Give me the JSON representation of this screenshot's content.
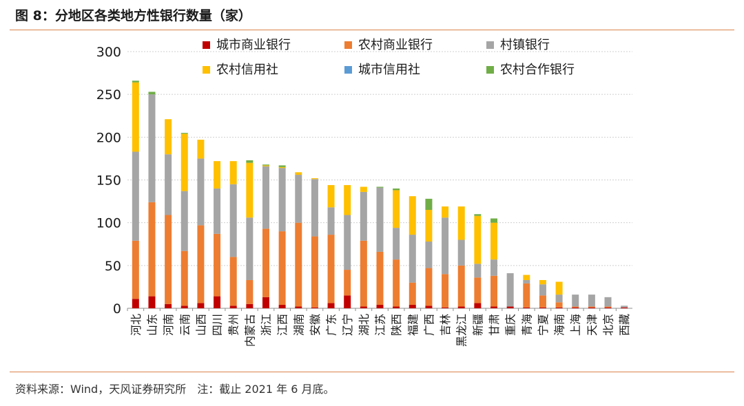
{
  "header": {
    "title": "图 8：分地区各类地方性银行数量（家）"
  },
  "footer": {
    "note": "资料来源：Wind，天风证券研究所　注：截止 2021 年 6 月底。"
  },
  "colors": {
    "city_commercial": "#c00000",
    "rural_commercial": "#ed7d31",
    "village_town": "#a5a5a5",
    "rural_credit": "#ffc000",
    "city_credit": "#5b9bd5",
    "rural_cooperative": "#70ad47"
  },
  "chart_data": {
    "type": "bar",
    "stacked": true,
    "ylim": [
      0,
      300
    ],
    "yticks": [
      0,
      50,
      100,
      150,
      200,
      250,
      300
    ],
    "grid": true,
    "legend_position": "top",
    "categories": [
      "河北",
      "山东",
      "河南",
      "云南",
      "山西",
      "四川",
      "贵州",
      "内蒙古",
      "浙江",
      "江西",
      "湖南",
      "安徽",
      "广东",
      "辽宁",
      "湖北",
      "江苏",
      "陕西",
      "福建",
      "广西",
      "吉林",
      "黑龙江",
      "新疆",
      "甘肃",
      "重庆",
      "青海",
      "宁夏",
      "海南",
      "上海",
      "天津",
      "北京",
      "西藏"
    ],
    "series": [
      {
        "name": "城市商业银行",
        "color_key": "city_commercial",
        "values": [
          11,
          14,
          5,
          3,
          6,
          14,
          3,
          5,
          13,
          4,
          2,
          1,
          6,
          15,
          2,
          4,
          2,
          4,
          3,
          1,
          2,
          6,
          2,
          2,
          1,
          1,
          1,
          1,
          1,
          1,
          1
        ]
      },
      {
        "name": "农村商业银行",
        "color_key": "rural_commercial",
        "values": [
          68,
          110,
          104,
          64,
          91,
          73,
          57,
          28,
          80,
          86,
          98,
          83,
          80,
          30,
          77,
          62,
          55,
          26,
          44,
          39,
          48,
          30,
          36,
          0,
          28,
          14,
          6,
          1,
          1,
          1,
          0
        ]
      },
      {
        "name": "村镇银行",
        "color_key": "village_town",
        "values": [
          104,
          126,
          71,
          70,
          78,
          53,
          85,
          73,
          73,
          74,
          56,
          67,
          32,
          64,
          57,
          75,
          37,
          56,
          31,
          66,
          30,
          16,
          19,
          39,
          4,
          13,
          9,
          14,
          14,
          11,
          2
        ]
      },
      {
        "name": "农村信用社",
        "color_key": "rural_credit",
        "values": [
          81,
          0,
          41,
          67,
          22,
          32,
          27,
          64,
          1,
          1,
          3,
          1,
          26,
          35,
          6,
          0,
          44,
          45,
          37,
          13,
          39,
          56,
          43,
          0,
          6,
          5,
          15,
          0,
          0,
          0,
          0
        ]
      },
      {
        "name": "城市信用社",
        "color_key": "city_credit",
        "values": [
          0,
          0,
          0,
          0,
          0,
          0,
          0,
          0,
          0,
          0,
          0,
          0,
          0,
          0,
          0,
          0,
          0,
          0,
          0,
          0,
          0,
          0,
          0,
          0,
          0,
          0,
          0,
          0,
          0,
          0,
          0
        ]
      },
      {
        "name": "农村合作银行",
        "color_key": "rural_cooperative",
        "values": [
          2,
          3,
          0,
          1,
          0,
          0,
          0,
          3,
          1,
          2,
          0,
          0,
          0,
          0,
          0,
          1,
          2,
          0,
          13,
          0,
          0,
          2,
          5,
          0,
          0,
          0,
          0,
          0,
          0,
          0,
          0
        ]
      }
    ]
  }
}
